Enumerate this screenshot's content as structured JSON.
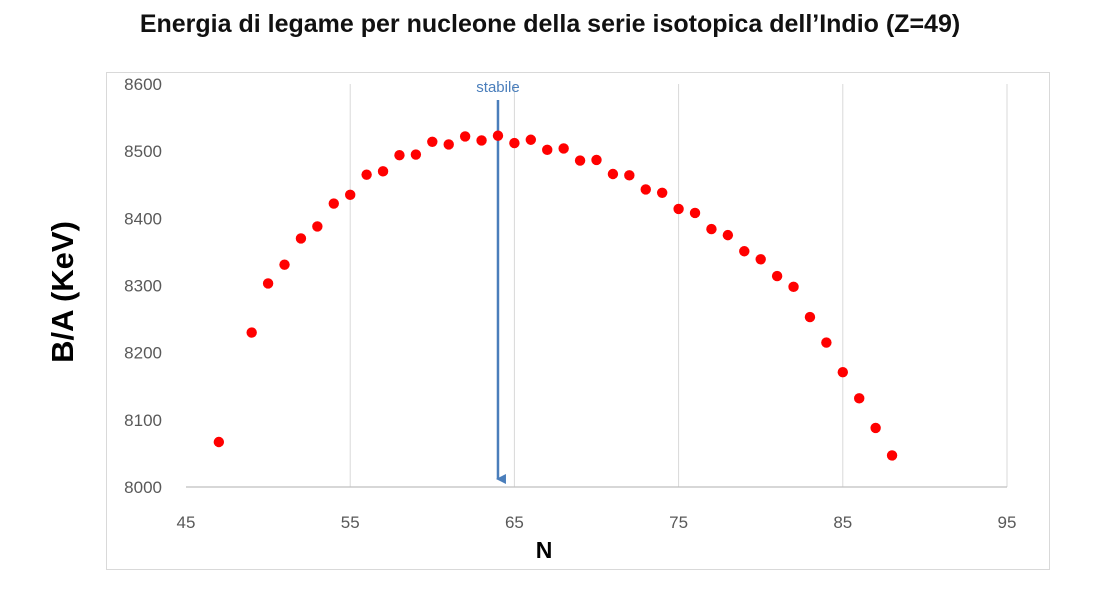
{
  "chart_data": {
    "type": "scatter",
    "title": "Energia di legame per nucleone della serie isotopica dell’Indio (Z=49)",
    "xlabel": "N",
    "ylabel": "B/A (KeV)",
    "xlim": [
      45,
      95
    ],
    "ylim": [
      8000,
      8600
    ],
    "x_ticks": [
      45,
      55,
      65,
      75,
      85,
      95
    ],
    "y_ticks": [
      8000,
      8100,
      8200,
      8300,
      8400,
      8500,
      8600
    ],
    "grid": "vertical",
    "legend": "none",
    "series": [
      {
        "color": "#ff0000",
        "points": [
          [
            47,
            8067
          ],
          [
            49,
            8230
          ],
          [
            50,
            8303
          ],
          [
            51,
            8331
          ],
          [
            52,
            8370
          ],
          [
            53,
            8388
          ],
          [
            54,
            8422
          ],
          [
            55,
            8435
          ],
          [
            56,
            8465
          ],
          [
            57,
            8470
          ],
          [
            58,
            8494
          ],
          [
            59,
            8495
          ],
          [
            60,
            8514
          ],
          [
            61,
            8510
          ],
          [
            62,
            8522
          ],
          [
            63,
            8516
          ],
          [
            64,
            8523
          ],
          [
            65,
            8512
          ],
          [
            66,
            8517
          ],
          [
            67,
            8502
          ],
          [
            68,
            8504
          ],
          [
            69,
            8486
          ],
          [
            70,
            8487
          ],
          [
            71,
            8466
          ],
          [
            72,
            8464
          ],
          [
            73,
            8443
          ],
          [
            74,
            8438
          ],
          [
            75,
            8414
          ],
          [
            76,
            8408
          ],
          [
            77,
            8384
          ],
          [
            78,
            8375
          ],
          [
            79,
            8351
          ],
          [
            80,
            8339
          ],
          [
            81,
            8314
          ],
          [
            82,
            8298
          ],
          [
            83,
            8253
          ],
          [
            84,
            8215
          ],
          [
            85,
            8171
          ],
          [
            86,
            8132
          ],
          [
            87,
            8088
          ],
          [
            88,
            8047
          ]
        ]
      }
    ],
    "annotations": [
      {
        "text": "stabile",
        "x": 64,
        "y_from": 8578,
        "y_to": 8000,
        "color": "#4a7ebb",
        "style": "arrow-down"
      }
    ]
  }
}
